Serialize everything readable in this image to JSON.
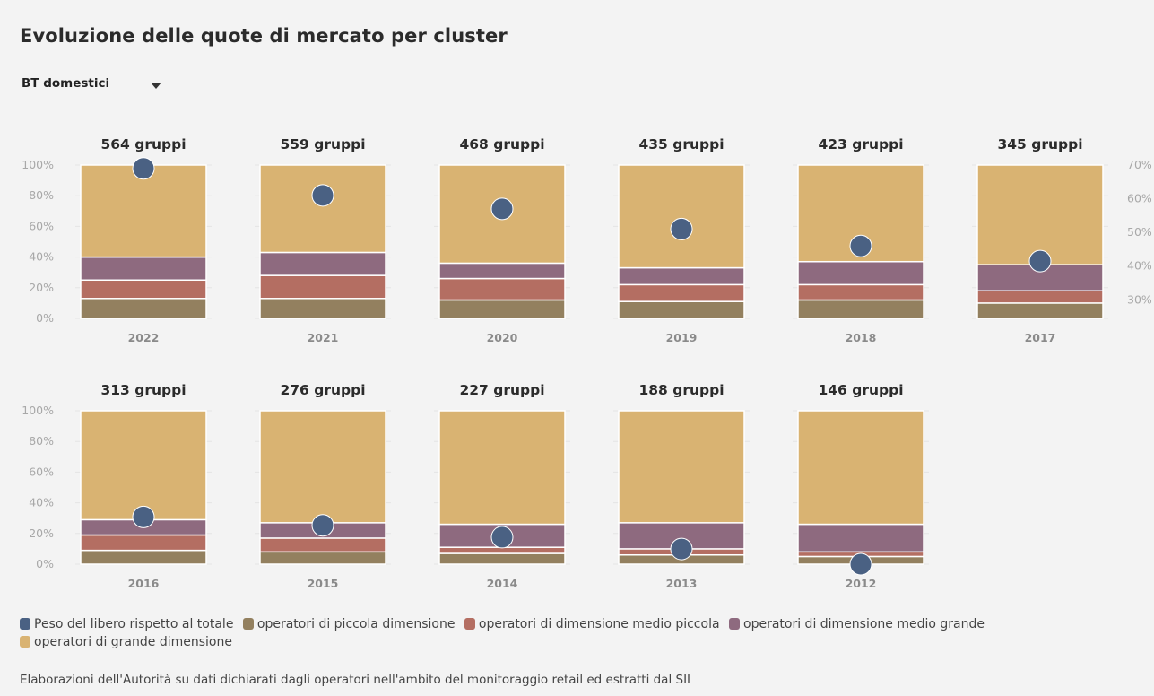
{
  "title": "Evoluzione delle quote di mercato per cluster",
  "selector": {
    "selected": "BT domestici"
  },
  "footnote": "Elaborazioni dell'Autorità su dati dichiarati dagli operatori nell'ambito del monitoraggio retail ed estratti dal SII",
  "colors": {
    "peso": "#4a6183",
    "piccola": "#93805f",
    "medio_piccola": "#b46e62",
    "medio_grande": "#8e6a7f",
    "grande": "#d9b372"
  },
  "legend": [
    {
      "label": "Peso del libero rispetto al totale",
      "color": "#4a6183"
    },
    {
      "label": "operatori di piccola dimensione",
      "color": "#93805f"
    },
    {
      "label": "operatori di dimensione medio piccola",
      "color": "#b46e62"
    },
    {
      "label": "operatori di dimensione medio grande",
      "color": "#8e6a7f"
    },
    {
      "label": "operatori di grande dimensione",
      "color": "#d9b372"
    }
  ],
  "chart_data": {
    "type": "bar",
    "stacked": true,
    "left_axis": {
      "ticks": [
        "0%",
        "20%",
        "40%",
        "60%",
        "80%",
        "100%"
      ],
      "ylim": [
        0,
        100
      ]
    },
    "right_axis": {
      "ticks": [
        "30%",
        "40%",
        "50%",
        "60%",
        "70%"
      ],
      "ylim": [
        24.5,
        70
      ]
    },
    "panels": [
      {
        "year": "2022",
        "title": "564 gruppi",
        "piccola": 13,
        "medio_piccola": 12,
        "medio_grande": 15,
        "grande": 60,
        "peso": 69.0
      },
      {
        "year": "2021",
        "title": "559 gruppi",
        "piccola": 13,
        "medio_piccola": 15,
        "medio_grande": 15,
        "grande": 57,
        "peso": 61.0
      },
      {
        "year": "2020",
        "title": "468 gruppi",
        "piccola": 12,
        "medio_piccola": 14,
        "medio_grande": 10,
        "grande": 64,
        "peso": 57.0
      },
      {
        "year": "2019",
        "title": "435 gruppi",
        "piccola": 11,
        "medio_piccola": 11,
        "medio_grande": 11,
        "grande": 67,
        "peso": 51.0
      },
      {
        "year": "2018",
        "title": "423 gruppi",
        "piccola": 12,
        "medio_piccola": 10,
        "medio_grande": 15,
        "grande": 63,
        "peso": 46.0
      },
      {
        "year": "2017",
        "title": "345 gruppi",
        "piccola": 10,
        "medio_piccola": 8,
        "medio_grande": 17,
        "grande": 65,
        "peso": 41.5
      },
      {
        "year": "2016",
        "title": "313 gruppi",
        "piccola": 9,
        "medio_piccola": 10,
        "medio_grande": 10,
        "grande": 71,
        "peso": 38.5
      },
      {
        "year": "2015",
        "title": "276 gruppi",
        "piccola": 8,
        "medio_piccola": 9,
        "medio_grande": 10,
        "grande": 73,
        "peso": 36.0
      },
      {
        "year": "2014",
        "title": "227 gruppi",
        "piccola": 7,
        "medio_piccola": 4,
        "medio_grande": 15,
        "grande": 74,
        "peso": 32.5
      },
      {
        "year": "2013",
        "title": "188 gruppi",
        "piccola": 6,
        "medio_piccola": 4,
        "medio_grande": 17,
        "grande": 73,
        "peso": 29.0
      },
      {
        "year": "2012",
        "title": "146 gruppi",
        "piccola": 5,
        "medio_piccola": 3,
        "medio_grande": 18,
        "grande": 74,
        "peso": 24.5
      }
    ]
  }
}
